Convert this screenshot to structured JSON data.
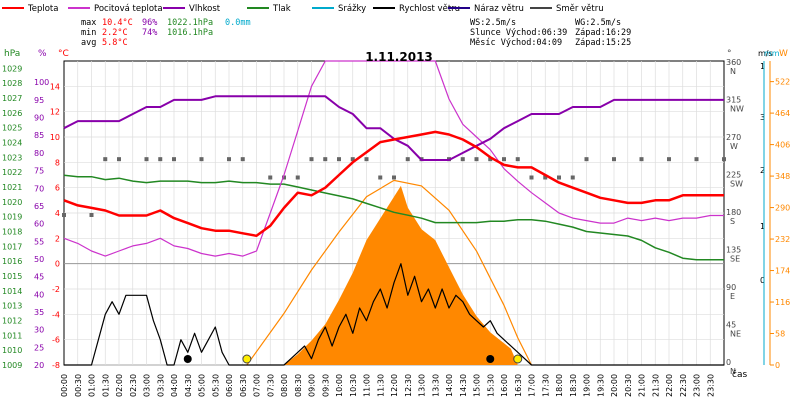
{
  "chart_data": {
    "type": "line",
    "title": "1.11.2013",
    "legend": [
      {
        "label": "Teplota",
        "color": "#ff0000"
      },
      {
        "label": "Pocitová teplota",
        "color": "#cc33cc"
      },
      {
        "label": "Vlhkost",
        "color": "#8800aa"
      },
      {
        "label": "Tlak",
        "color": "#228822"
      },
      {
        "label": "Srážky",
        "color": "#00aacc"
      },
      {
        "label": "Rychlost větru",
        "color": "#000000"
      },
      {
        "label": "Náraz větru",
        "color": "#220088"
      },
      {
        "label": "Směr větru",
        "color": "#444444"
      }
    ],
    "stats": [
      {
        "label": "max",
        "temp": "10.4°C",
        "hum": "96%",
        "press": "1022.1hPa",
        "rain": "0.0mm"
      },
      {
        "label": "min",
        "temp": "2.2°C",
        "hum": "74%",
        "press": "1016.1hPa",
        "rain": ""
      },
      {
        "label": "avg",
        "temp": "5.8°C",
        "hum": "",
        "press": "",
        "rain": ""
      }
    ],
    "info": [
      {
        "a": "WS:2.5m/s",
        "b": "WG:2.5m/s"
      },
      {
        "a": "Slunce Východ:06:39",
        "b": "Západ:16:29"
      },
      {
        "a": "Měsíc Východ:04:09",
        "b": "Západ:15:25"
      }
    ],
    "axes": {
      "hpa_label": "hPa",
      "pct_label": "%",
      "degc_label": "°C",
      "deg_label": "°",
      "ms_label": "m/s",
      "mm_label": "mm",
      "w_label": "W",
      "x_label": "čas",
      "hpa_ticks": [
        "1029",
        "1028",
        "1027",
        "1026",
        "1025",
        "1024",
        "1023",
        "1022",
        "1021",
        "1020",
        "1019",
        "1018",
        "1017",
        "1016",
        "1015",
        "1014",
        "1013",
        "1012",
        "1011",
        "1010",
        "1009"
      ],
      "pct_ticks": [
        "100",
        "95",
        "90",
        "85",
        "80",
        "75",
        "70",
        "65",
        "60",
        "55",
        "50",
        "45",
        "40",
        "35",
        "30",
        "25",
        "20"
      ],
      "temp_ticks": [
        "14",
        "12",
        "10",
        "8",
        "6",
        "4",
        "2",
        "0",
        "-2",
        "-4",
        "-6",
        "-8"
      ],
      "temp_range": [
        -8,
        16
      ],
      "hum_range": [
        20,
        106
      ],
      "press_range": [
        1009,
        1029.5
      ],
      "dir_ticks": [
        {
          "v": "360",
          "d": "N"
        },
        {
          "v": "315",
          "d": "NW"
        },
        {
          "v": "270",
          "d": "W"
        },
        {
          "v": "225",
          "d": "SW"
        },
        {
          "v": "180",
          "d": "S"
        },
        {
          "v": "135",
          "d": "SE"
        },
        {
          "v": "90",
          "d": "E"
        },
        {
          "v": "45",
          "d": "NE"
        },
        {
          "v": "0",
          "d": "N"
        }
      ],
      "ms_ticks": [
        "1",
        "3",
        "2",
        "1",
        "0"
      ],
      "w_ticks": [
        "522",
        "464",
        "406",
        "348",
        "290",
        "232",
        "174",
        "116",
        "58",
        "0"
      ],
      "w_range": [
        0,
        560
      ],
      "x_ticks": [
        "00:00",
        "00:30",
        "01:00",
        "01:30",
        "02:00",
        "02:30",
        "03:00",
        "03:30",
        "04:00",
        "04:30",
        "05:00",
        "05:30",
        "06:00",
        "06:30",
        "07:00",
        "07:30",
        "08:00",
        "08:30",
        "09:00",
        "09:30",
        "10:00",
        "10:30",
        "11:00",
        "11:30",
        "12:00",
        "12:30",
        "13:00",
        "13:30",
        "14:00",
        "14:30",
        "15:00",
        "15:30",
        "16:00",
        "16:30",
        "17:00",
        "17:30",
        "18:00",
        "18:30",
        "19:00",
        "19:30",
        "20:00",
        "20:30",
        "21:00",
        "21:30",
        "22:00",
        "22:30",
        "23:00",
        "23:30"
      ],
      "x_range_hours": [
        0,
        24
      ]
    },
    "temperature": [
      [
        0,
        5
      ],
      [
        0.5,
        4.6
      ],
      [
        1,
        4.4
      ],
      [
        1.5,
        4.2
      ],
      [
        2,
        3.8
      ],
      [
        2.5,
        3.8
      ],
      [
        3,
        3.8
      ],
      [
        3.5,
        4.2
      ],
      [
        4,
        3.6
      ],
      [
        4.5,
        3.2
      ],
      [
        5,
        2.8
      ],
      [
        5.5,
        2.6
      ],
      [
        6,
        2.6
      ],
      [
        6.5,
        2.4
      ],
      [
        7,
        2.2
      ],
      [
        7.5,
        3.0
      ],
      [
        8,
        4.4
      ],
      [
        8.5,
        5.6
      ],
      [
        9,
        5.4
      ],
      [
        9.5,
        6.0
      ],
      [
        10,
        7.0
      ],
      [
        10.5,
        8.0
      ],
      [
        11,
        8.8
      ],
      [
        11.5,
        9.6
      ],
      [
        12,
        9.8
      ],
      [
        12.5,
        10.0
      ],
      [
        13,
        10.2
      ],
      [
        13.5,
        10.4
      ],
      [
        14,
        10.2
      ],
      [
        14.5,
        9.8
      ],
      [
        15,
        9.2
      ],
      [
        15.5,
        8.4
      ],
      [
        16,
        7.8
      ],
      [
        16.5,
        7.6
      ],
      [
        17,
        7.6
      ],
      [
        17.5,
        7.0
      ],
      [
        18,
        6.4
      ],
      [
        18.5,
        6.0
      ],
      [
        19,
        5.6
      ],
      [
        19.5,
        5.2
      ],
      [
        20,
        5.0
      ],
      [
        20.5,
        4.8
      ],
      [
        21,
        4.8
      ],
      [
        21.5,
        5.0
      ],
      [
        22,
        5.0
      ],
      [
        22.5,
        5.4
      ],
      [
        23,
        5.4
      ],
      [
        23.5,
        5.4
      ],
      [
        24,
        5.4
      ]
    ],
    "feels_like": [
      [
        0,
        2.0
      ],
      [
        0.5,
        1.6
      ],
      [
        1,
        1.0
      ],
      [
        1.5,
        0.6
      ],
      [
        2,
        1.0
      ],
      [
        2.5,
        1.4
      ],
      [
        3,
        1.6
      ],
      [
        3.5,
        2.0
      ],
      [
        4,
        1.4
      ],
      [
        4.5,
        1.2
      ],
      [
        5,
        0.8
      ],
      [
        5.5,
        0.6
      ],
      [
        6,
        0.8
      ],
      [
        6.5,
        0.6
      ],
      [
        7,
        1.0
      ],
      [
        7.5,
        4.0
      ],
      [
        8,
        7.0
      ],
      [
        8.5,
        10.5
      ],
      [
        9,
        14.0
      ],
      [
        9.5,
        16.0
      ],
      [
        10,
        16.0
      ],
      [
        10.5,
        16.0
      ],
      [
        11,
        16.0
      ],
      [
        11.5,
        16.0
      ],
      [
        12,
        16.0
      ],
      [
        12.5,
        16.0
      ],
      [
        13,
        16.0
      ],
      [
        13.5,
        16.0
      ],
      [
        14,
        13.0
      ],
      [
        14.5,
        11.0
      ],
      [
        15,
        10.0
      ],
      [
        15.5,
        9.0
      ],
      [
        16,
        7.5
      ],
      [
        16.5,
        6.5
      ],
      [
        17,
        5.6
      ],
      [
        17.5,
        4.8
      ],
      [
        18,
        4.0
      ],
      [
        18.5,
        3.6
      ],
      [
        19,
        3.4
      ],
      [
        19.5,
        3.2
      ],
      [
        20,
        3.2
      ],
      [
        20.5,
        3.6
      ],
      [
        21,
        3.4
      ],
      [
        21.5,
        3.6
      ],
      [
        22,
        3.4
      ],
      [
        22.5,
        3.6
      ],
      [
        23,
        3.6
      ],
      [
        23.5,
        3.8
      ],
      [
        24,
        3.8
      ]
    ],
    "humidity": [
      [
        0,
        87
      ],
      [
        0.5,
        89
      ],
      [
        1,
        89
      ],
      [
        1.5,
        89
      ],
      [
        2,
        89
      ],
      [
        2.5,
        91
      ],
      [
        3,
        93
      ],
      [
        3.5,
        93
      ],
      [
        4,
        95
      ],
      [
        4.5,
        95
      ],
      [
        5,
        95
      ],
      [
        5.5,
        96
      ],
      [
        6,
        96
      ],
      [
        6.5,
        96
      ],
      [
        7,
        96
      ],
      [
        7.5,
        96
      ],
      [
        8,
        96
      ],
      [
        8.5,
        96
      ],
      [
        9,
        96
      ],
      [
        9.5,
        96
      ],
      [
        10,
        93
      ],
      [
        10.5,
        91
      ],
      [
        11,
        87
      ],
      [
        11.5,
        87
      ],
      [
        12,
        84
      ],
      [
        12.5,
        82
      ],
      [
        13,
        78
      ],
      [
        13.5,
        78
      ],
      [
        14,
        78
      ],
      [
        14.5,
        80
      ],
      [
        15,
        82
      ],
      [
        15.5,
        84
      ],
      [
        16,
        87
      ],
      [
        16.5,
        89
      ],
      [
        17,
        91
      ],
      [
        17.5,
        91
      ],
      [
        18,
        91
      ],
      [
        18.5,
        93
      ],
      [
        19,
        93
      ],
      [
        19.5,
        93
      ],
      [
        20,
        95
      ],
      [
        20.5,
        95
      ],
      [
        21,
        95
      ],
      [
        21.5,
        95
      ],
      [
        22,
        95
      ],
      [
        22.5,
        95
      ],
      [
        23,
        95
      ],
      [
        23.5,
        95
      ],
      [
        24,
        95
      ]
    ],
    "pressure": [
      [
        0,
        1021.8
      ],
      [
        0.5,
        1021.7
      ],
      [
        1,
        1021.7
      ],
      [
        1.5,
        1021.5
      ],
      [
        2,
        1021.6
      ],
      [
        2.5,
        1021.4
      ],
      [
        3,
        1021.3
      ],
      [
        3.5,
        1021.4
      ],
      [
        4,
        1021.4
      ],
      [
        4.5,
        1021.4
      ],
      [
        5,
        1021.3
      ],
      [
        5.5,
        1021.3
      ],
      [
        6,
        1021.4
      ],
      [
        6.5,
        1021.3
      ],
      [
        7,
        1021.3
      ],
      [
        7.5,
        1021.2
      ],
      [
        8,
        1021.2
      ],
      [
        8.5,
        1021.0
      ],
      [
        9,
        1020.8
      ],
      [
        9.5,
        1020.6
      ],
      [
        10,
        1020.4
      ],
      [
        10.5,
        1020.2
      ],
      [
        11,
        1019.9
      ],
      [
        11.5,
        1019.6
      ],
      [
        12,
        1019.3
      ],
      [
        12.5,
        1019.1
      ],
      [
        13,
        1018.9
      ],
      [
        13.5,
        1018.6
      ],
      [
        14,
        1018.6
      ],
      [
        14.5,
        1018.6
      ],
      [
        15,
        1018.6
      ],
      [
        15.5,
        1018.7
      ],
      [
        16,
        1018.7
      ],
      [
        16.5,
        1018.8
      ],
      [
        17,
        1018.8
      ],
      [
        17.5,
        1018.7
      ],
      [
        18,
        1018.5
      ],
      [
        18.5,
        1018.3
      ],
      [
        19,
        1018.0
      ],
      [
        19.5,
        1017.9
      ],
      [
        20,
        1017.8
      ],
      [
        20.5,
        1017.7
      ],
      [
        21,
        1017.4
      ],
      [
        21.5,
        1016.9
      ],
      [
        22,
        1016.6
      ],
      [
        22.5,
        1016.2
      ],
      [
        23,
        1016.1
      ],
      [
        23.5,
        1016.1
      ],
      [
        24,
        1016.1
      ]
    ],
    "wind_speed": [
      [
        0,
        -8
      ],
      [
        1,
        -8
      ],
      [
        1.5,
        -4
      ],
      [
        1.75,
        -3
      ],
      [
        2,
        -4
      ],
      [
        2.25,
        -2.5
      ],
      [
        3,
        -2.5
      ],
      [
        3.25,
        -4.5
      ],
      [
        3.5,
        -6
      ],
      [
        3.75,
        -8
      ],
      [
        4,
        -8
      ],
      [
        4.25,
        -6
      ],
      [
        4.5,
        -7
      ],
      [
        4.75,
        -5.5
      ],
      [
        5,
        -7
      ],
      [
        5.25,
        -6
      ],
      [
        5.5,
        -5
      ],
      [
        5.75,
        -7
      ],
      [
        6,
        -8
      ],
      [
        7,
        -8
      ],
      [
        7.5,
        -8
      ],
      [
        8,
        -8
      ],
      [
        8.25,
        -7.5
      ],
      [
        8.5,
        -7
      ],
      [
        8.75,
        -6.5
      ],
      [
        9,
        -7.5
      ],
      [
        9.25,
        -6
      ],
      [
        9.5,
        -5
      ],
      [
        9.75,
        -6.5
      ],
      [
        10,
        -5
      ],
      [
        10.25,
        -4
      ],
      [
        10.5,
        -5.5
      ],
      [
        10.75,
        -3.5
      ],
      [
        11,
        -4.5
      ],
      [
        11.25,
        -3
      ],
      [
        11.5,
        -2
      ],
      [
        11.75,
        -3.5
      ],
      [
        12,
        -1.5
      ],
      [
        12.25,
        0
      ],
      [
        12.5,
        -2.5
      ],
      [
        12.75,
        -1
      ],
      [
        13,
        -3
      ],
      [
        13.25,
        -2
      ],
      [
        13.5,
        -3.5
      ],
      [
        13.75,
        -2
      ],
      [
        14,
        -3.5
      ],
      [
        14.25,
        -2.5
      ],
      [
        14.5,
        -3
      ],
      [
        14.75,
        -4
      ],
      [
        15,
        -4.5
      ],
      [
        15.25,
        -5
      ],
      [
        15.5,
        -4.5
      ],
      [
        15.75,
        -5.5
      ],
      [
        16,
        -6
      ],
      [
        16.5,
        -7
      ],
      [
        17,
        -8
      ],
      [
        24,
        -8
      ]
    ],
    "wind_dir_deg": [
      [
        0,
        180
      ],
      [
        1,
        180
      ],
      [
        1.5,
        247
      ],
      [
        2,
        247
      ],
      [
        3,
        247
      ],
      [
        3.5,
        247
      ],
      [
        4,
        247
      ],
      [
        5,
        247
      ],
      [
        6,
        247
      ],
      [
        6.5,
        247
      ],
      [
        7.5,
        225
      ],
      [
        8,
        225
      ],
      [
        8.5,
        225
      ],
      [
        9,
        247
      ],
      [
        9.5,
        247
      ],
      [
        10,
        247
      ],
      [
        10.5,
        247
      ],
      [
        11,
        247
      ],
      [
        11.5,
        225
      ],
      [
        12,
        225
      ],
      [
        12.5,
        247
      ],
      [
        13,
        247
      ],
      [
        14,
        247
      ],
      [
        14.5,
        247
      ],
      [
        15,
        247
      ],
      [
        15.5,
        247
      ],
      [
        16,
        247
      ],
      [
        16.5,
        247
      ],
      [
        17,
        225
      ],
      [
        17.5,
        225
      ],
      [
        18,
        225
      ],
      [
        18.5,
        225
      ],
      [
        19,
        247
      ],
      [
        20,
        247
      ],
      [
        21,
        247
      ],
      [
        22,
        247
      ],
      [
        23,
        247
      ],
      [
        24,
        247
      ]
    ],
    "solar_w": [
      [
        8,
        0
      ],
      [
        8.5,
        20
      ],
      [
        9,
        45
      ],
      [
        9.5,
        75
      ],
      [
        10,
        120
      ],
      [
        10.5,
        170
      ],
      [
        11,
        230
      ],
      [
        11.5,
        270
      ],
      [
        12,
        310
      ],
      [
        12.25,
        330
      ],
      [
        12.5,
        290
      ],
      [
        13,
        250
      ],
      [
        13.5,
        230
      ],
      [
        14,
        180
      ],
      [
        14.5,
        130
      ],
      [
        15,
        90
      ],
      [
        15.5,
        60
      ],
      [
        16,
        40
      ],
      [
        16.25,
        30
      ],
      [
        16.5,
        0
      ]
    ],
    "solar_theory_w": [
      [
        6.65,
        0
      ],
      [
        8,
        95
      ],
      [
        9,
        175
      ],
      [
        10,
        245
      ],
      [
        11,
        310
      ],
      [
        12,
        340
      ],
      [
        13,
        330
      ],
      [
        14,
        285
      ],
      [
        15,
        210
      ],
      [
        16,
        110
      ],
      [
        16.5,
        50
      ],
      [
        17,
        0
      ]
    ]
  }
}
